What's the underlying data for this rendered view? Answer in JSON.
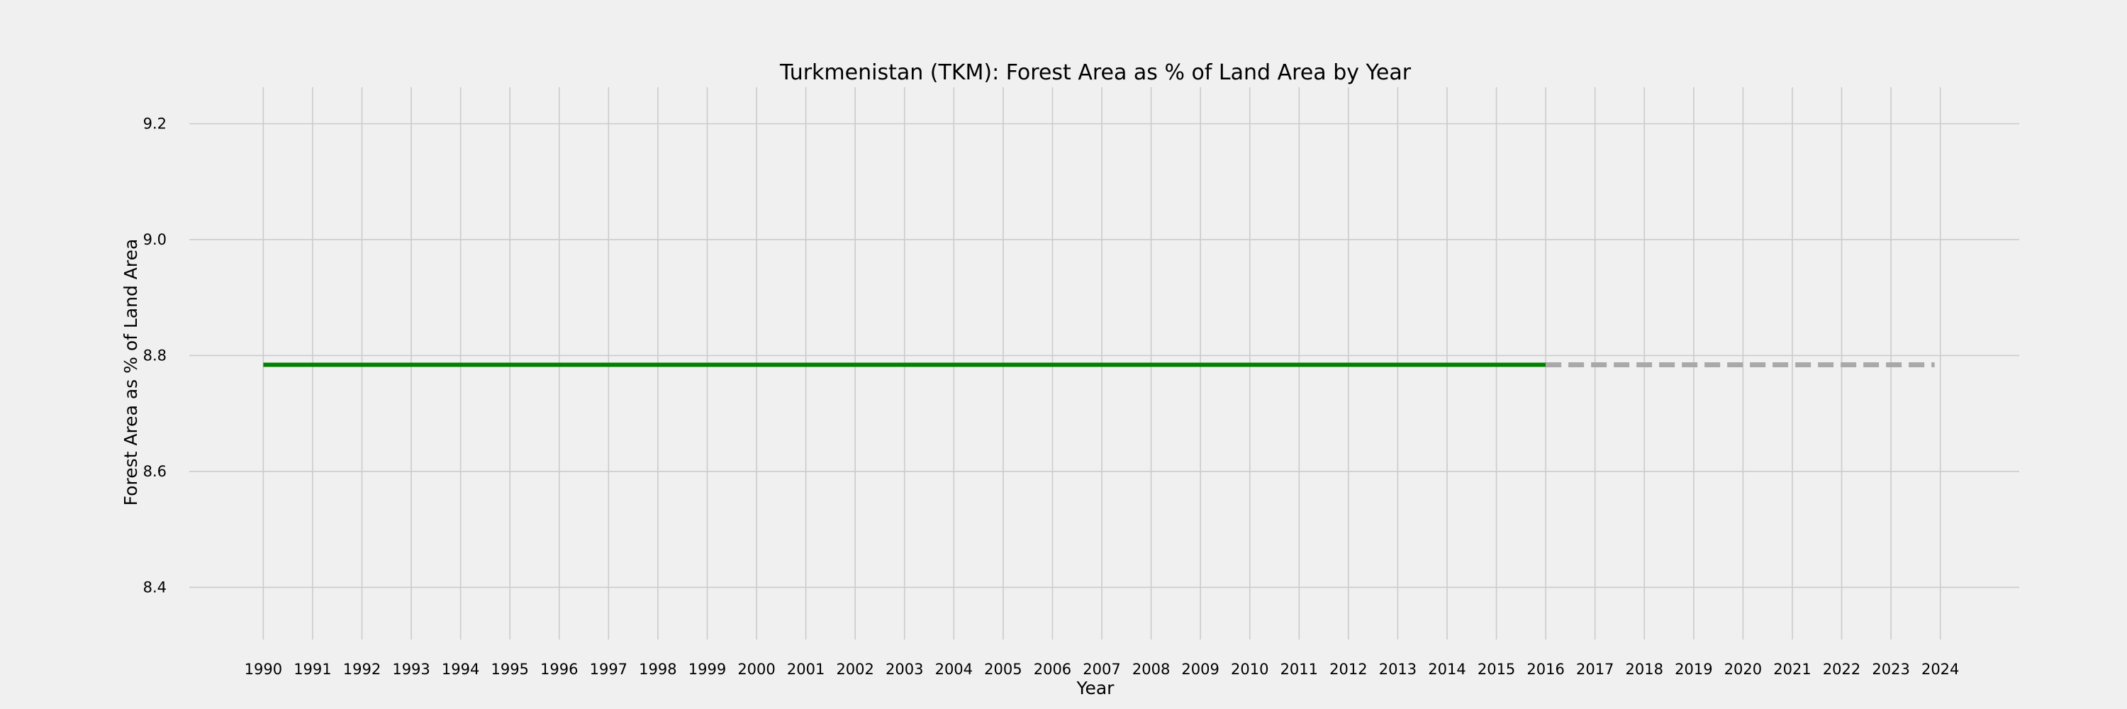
{
  "chart_data": {
    "type": "line",
    "title": "Turkmenistan (TKM): Forest Area as % of Land Area by Year",
    "xlabel": "Year",
    "ylabel": "Forest Area as % of Land Area",
    "xlim": [
      1988.5,
      2025.6
    ],
    "ylim": [
      8.31,
      9.263
    ],
    "x_ticks": [
      1990,
      1991,
      1992,
      1993,
      1994,
      1995,
      1996,
      1997,
      1998,
      1999,
      2000,
      2001,
      2002,
      2003,
      2004,
      2005,
      2006,
      2007,
      2008,
      2009,
      2010,
      2011,
      2012,
      2013,
      2014,
      2015,
      2016,
      2017,
      2018,
      2019,
      2020,
      2021,
      2022,
      2023,
      2024
    ],
    "y_ticks": [
      8.4,
      8.6,
      8.8,
      9.0,
      9.2
    ],
    "grid": true,
    "series": [
      {
        "style": "solid",
        "color": "#008000",
        "x": [
          1990,
          1991,
          1992,
          1993,
          1994,
          1995,
          1996,
          1997,
          1998,
          1999,
          2000,
          2001,
          2002,
          2003,
          2004,
          2005,
          2006,
          2007,
          2008,
          2009,
          2010,
          2011,
          2012,
          2013,
          2014,
          2015,
          2016
        ],
        "y": [
          8.784,
          8.784,
          8.784,
          8.784,
          8.784,
          8.784,
          8.784,
          8.784,
          8.784,
          8.784,
          8.784,
          8.784,
          8.784,
          8.784,
          8.784,
          8.784,
          8.784,
          8.784,
          8.784,
          8.784,
          8.784,
          8.784,
          8.784,
          8.784,
          8.784,
          8.784,
          8.784
        ]
      },
      {
        "style": "dashed",
        "color": "#a9a9a9",
        "x": [
          2016,
          2017,
          2018,
          2019,
          2020,
          2021,
          2022,
          2023,
          2024
        ],
        "y": [
          8.784,
          8.784,
          8.784,
          8.784,
          8.784,
          8.784,
          8.784,
          8.784,
          8.784
        ]
      }
    ]
  },
  "colors": {
    "background": "#f0f0f0",
    "grid": "#cbcbcb"
  }
}
